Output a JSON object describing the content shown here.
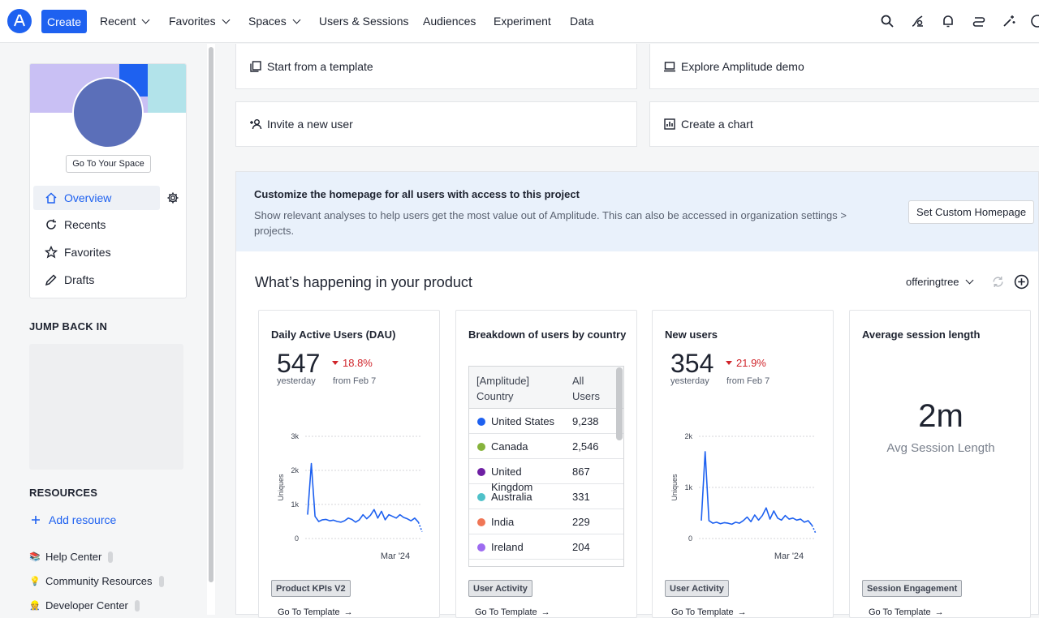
{
  "topbar": {
    "create_label": "Create",
    "nav": [
      "Recent",
      "Favorites",
      "Spaces",
      "Users & Sessions",
      "Audiences",
      "Experiment",
      "Data"
    ]
  },
  "sidebar": {
    "go_to_space": "Go To Your Space",
    "items": [
      {
        "label": "Overview",
        "icon": "home-icon"
      },
      {
        "label": "Recents",
        "icon": "refresh-icon"
      },
      {
        "label": "Favorites",
        "icon": "star-icon"
      },
      {
        "label": "Drafts",
        "icon": "pencil-icon"
      }
    ],
    "jump_back_title": "JUMP BACK IN",
    "resources_title": "RESOURCES",
    "add_resource": "Add resource",
    "resources": [
      {
        "label": "Help Center",
        "icon": "📚"
      },
      {
        "label": "Community Resources",
        "icon": "💡"
      },
      {
        "label": "Developer Center",
        "icon": "👷"
      }
    ]
  },
  "quick_actions": {
    "template": "Start from a template",
    "demo": "Explore Amplitude demo",
    "invite": "Invite a new user",
    "chart": "Create a chart"
  },
  "customize": {
    "title": "Customize the homepage for all users with access to this project",
    "description": "Show relevant analyses to help users get the most value out of Amplitude. This can also be accessed in organization settings > projects.",
    "button": "Set Custom Homepage"
  },
  "happening": {
    "title": "What’s happening in your product",
    "project": "offeringtree"
  },
  "cards": {
    "dau": {
      "title": "Daily Active Users (DAU)",
      "value": "547",
      "sub": "yesterday",
      "delta": "18.8%",
      "from": "from Feb 7",
      "tag": "Product KPIs V2",
      "goto": "Go To Template"
    },
    "breakdown": {
      "title": "Breakdown of users by country",
      "col1": "[Amplitude] Country",
      "col2": "All Users",
      "tag": "User Activity",
      "goto": "Go To Template"
    },
    "new_users": {
      "title": "New users",
      "value": "354",
      "sub": "yesterday",
      "delta": "21.9%",
      "from": "from Feb 7",
      "tag": "User Activity",
      "goto": "Go To Template"
    },
    "session": {
      "title": "Average session length",
      "value": "2m",
      "label": "Avg Session Length",
      "tag": "Session Engagement",
      "goto": "Go To Template"
    }
  },
  "countries": [
    {
      "name": "United States",
      "value": "9,238",
      "color": "#1e61f0"
    },
    {
      "name": "Canada",
      "value": "2,546",
      "color": "#86b33c"
    },
    {
      "name": "United Kingdom",
      "value": "867",
      "color": "#6e1fa3"
    },
    {
      "name": "Australia",
      "value": "331",
      "color": "#4fc1c9"
    },
    {
      "name": "India",
      "value": "229",
      "color": "#f07656"
    },
    {
      "name": "Ireland",
      "value": "204",
      "color": "#9d6bf0"
    }
  ],
  "chart_data": [
    {
      "type": "line",
      "title": "",
      "ylabel": "Uniques",
      "ylim": [
        0,
        3000
      ],
      "yticks": [
        "0",
        "1k",
        "2k",
        "3k"
      ],
      "xtick": "Mar '24",
      "series": [
        {
          "values": [
            700,
            2200,
            650,
            500,
            550,
            560,
            520,
            540,
            500,
            480,
            520,
            600,
            560,
            480,
            550,
            700,
            580,
            680,
            850,
            600,
            800,
            550,
            700,
            650,
            600,
            700,
            620,
            580,
            520,
            600,
            480,
            200
          ]
        }
      ]
    },
    {
      "type": "line",
      "title": "",
      "ylabel": "Uniques",
      "ylim": [
        0,
        2000
      ],
      "yticks": [
        "0",
        "1k",
        "2k"
      ],
      "xtick": "Mar '24",
      "series": [
        {
          "values": [
            350,
            1700,
            350,
            300,
            320,
            290,
            310,
            300,
            280,
            320,
            300,
            350,
            420,
            330,
            460,
            360,
            450,
            600,
            380,
            540,
            400,
            360,
            450,
            380,
            400,
            360,
            380,
            320,
            350,
            260,
            100
          ]
        }
      ]
    }
  ]
}
